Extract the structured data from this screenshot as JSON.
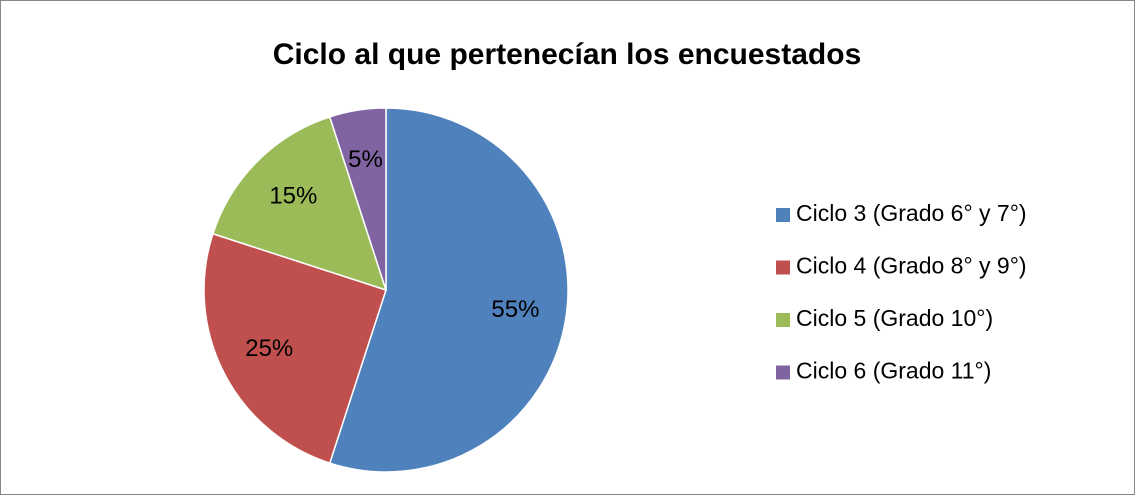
{
  "chart_data": {
    "type": "pie",
    "title": "Ciclo al que pertenecían los encuestados",
    "categories": [
      "Ciclo 3 (Grado 6° y 7°)",
      "Ciclo 4 (Grado 8° y 9°)",
      "Ciclo 5 (Grado 10°)",
      "Ciclo 6 (Grado 11°)"
    ],
    "values": [
      55,
      25,
      15,
      5
    ],
    "value_labels": [
      "55%",
      "25%",
      "15%",
      "5%"
    ],
    "colors": [
      "#4f81bd",
      "#c0504d",
      "#9bbb59",
      "#8064a2"
    ],
    "legend": "right"
  }
}
